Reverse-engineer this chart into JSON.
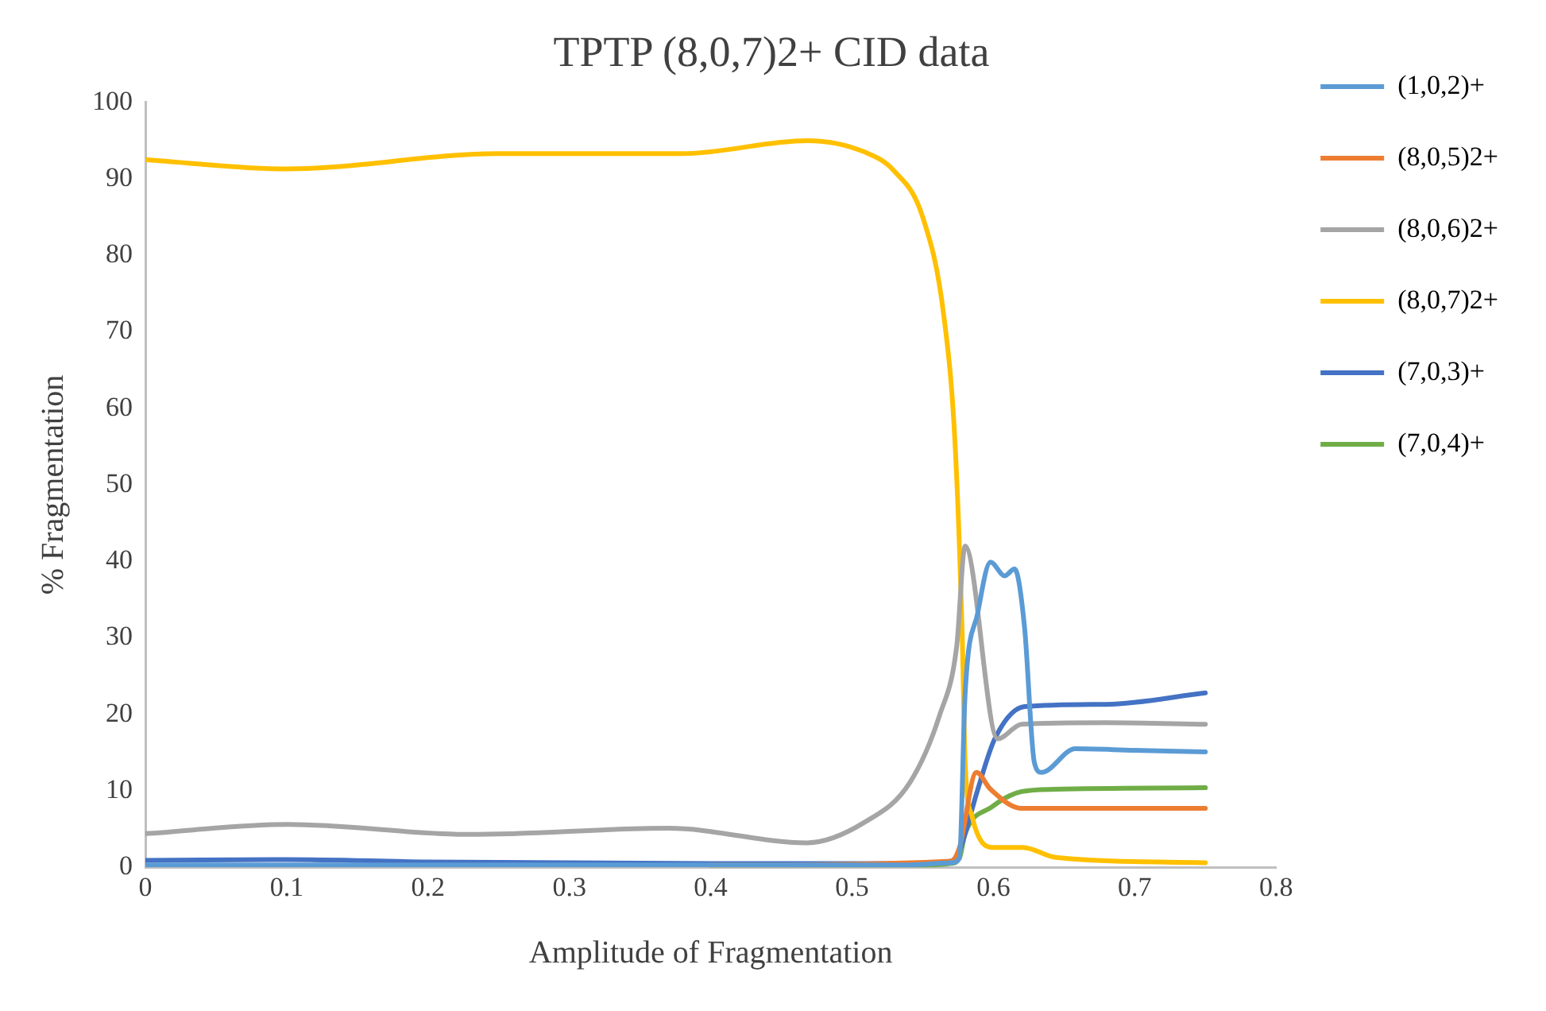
{
  "chart_data": {
    "type": "line",
    "title": "TPTP (8,0,7)2+ CID data",
    "xlabel": "Amplitude of Fragmentation",
    "ylabel": "% Fragmentation",
    "xlim": [
      0,
      0.8
    ],
    "xticks": [
      0,
      0.1,
      0.2,
      0.3,
      0.4,
      0.5,
      0.6,
      0.7,
      0.8
    ],
    "ylim": [
      0,
      100
    ],
    "yticks": [
      0,
      10,
      20,
      30,
      40,
      50,
      60,
      70,
      80,
      90,
      100
    ],
    "grid": false,
    "legend": "right",
    "marker": "none",
    "line_style": "solid",
    "series": [
      {
        "name": "(1,0,2)+",
        "color": "#5b9bd5",
        "x": [
          0,
          0.2,
          0.4,
          0.54,
          0.57,
          0.576,
          0.58,
          0.589,
          0.598,
          0.608,
          0.615,
          0.622,
          0.629,
          0.634,
          0.658,
          0.7,
          0.75
        ],
        "values": [
          0.3,
          0.3,
          0.3,
          0.3,
          0.6,
          1.2,
          22.6,
          33.3,
          39.9,
          38.1,
          39,
          31.5,
          13.7,
          12.4,
          15.5,
          15.3,
          15.1
        ]
      },
      {
        "name": "(8,0,5)2+",
        "color": "#ed7d31",
        "x": [
          0.4,
          0.57,
          0.576,
          0.588,
          0.598,
          0.62,
          0.68,
          0.75
        ],
        "values": [
          0.3,
          0.8,
          2.6,
          12.4,
          10.2,
          7.7,
          7.7,
          7.7
        ]
      },
      {
        "name": "(8,0,6)2+",
        "color": "#a5a5a5",
        "x": [
          0,
          0.101,
          0.23,
          0.37,
          0.468,
          0.509,
          0.541,
          0.562,
          0.574,
          0.58,
          0.603,
          0.62,
          0.68,
          0.75
        ],
        "values": [
          4.4,
          5.6,
          4.3,
          5.1,
          3.2,
          5.9,
          11.1,
          19.9,
          28.8,
          42,
          16.8,
          18.7,
          18.9,
          18.7
        ]
      },
      {
        "name": "(8,0,7)2+",
        "color": "#ffc000",
        "x": [
          0,
          0.1,
          0.25,
          0.38,
          0.468,
          0.509,
          0.53,
          0.55,
          0.565,
          0.573,
          0.578,
          0.58,
          0.585,
          0.599,
          0.621,
          0.644,
          0.75
        ],
        "values": [
          92.5,
          91.3,
          93.3,
          93.3,
          95,
          93.5,
          91,
          85,
          72,
          55,
          30,
          13.8,
          6.6,
          2.6,
          2.6,
          1.3,
          0.6
        ]
      },
      {
        "name": "(7,0,3)+",
        "color": "#4472c4",
        "x": [
          0,
          0.1,
          0.2,
          0.4,
          0.54,
          0.57,
          0.576,
          0.589,
          0.601,
          0.622,
          0.68,
          0.75
        ],
        "values": [
          0.9,
          1,
          0.7,
          0.5,
          0.5,
          0.8,
          2.2,
          10.2,
          16.8,
          21,
          21.3,
          22.8
        ]
      },
      {
        "name": "(7,0,4)+",
        "color": "#70ad47",
        "x": [
          0.4,
          0.54,
          0.57,
          0.576,
          0.58,
          0.599,
          0.62,
          0.644,
          0.75
        ],
        "values": [
          0.2,
          0.2,
          0.5,
          1.2,
          4.4,
          7.9,
          9.9,
          10.2,
          10.4
        ]
      }
    ]
  }
}
